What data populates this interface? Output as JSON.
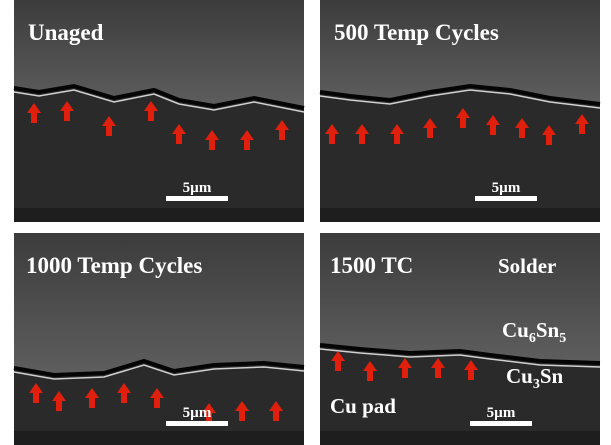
{
  "panels": [
    {
      "title": "Unaged",
      "scale_bar": "5µm"
    },
    {
      "title": "500 Temp Cycles",
      "scale_bar": "5µm"
    },
    {
      "title": "1000 Temp Cycles",
      "scale_bar": "5µm"
    },
    {
      "title": "1500 TC",
      "scale_bar": "5µm",
      "labels": {
        "solder": "Solder",
        "cu6sn5": [
          "Cu",
          "6",
          "Sn",
          "5"
        ],
        "cu3sn": [
          "Cu",
          "3",
          "Sn"
        ],
        "cu_pad": "Cu pad"
      }
    }
  ]
}
